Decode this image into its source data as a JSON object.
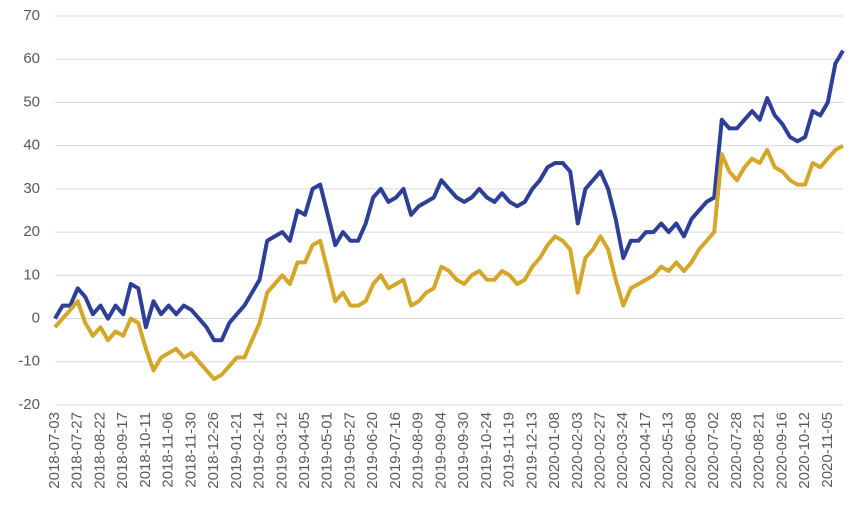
{
  "chart_data": {
    "type": "line",
    "categories": [
      "2018-07-03",
      null,
      null,
      "2018-07-27",
      null,
      null,
      "2018-08-22",
      null,
      null,
      "2018-09-17",
      null,
      null,
      "2018-10-11",
      null,
      null,
      "2018-11-06",
      null,
      null,
      "2018-11-30",
      null,
      null,
      "2018-12-26",
      null,
      null,
      "2019-01-21",
      null,
      null,
      "2019-02-14",
      null,
      null,
      "2019-03-12",
      null,
      null,
      "2019-04-05",
      null,
      null,
      "2019-05-01",
      null,
      null,
      "2019-05-27",
      null,
      null,
      "2019-06-20",
      null,
      null,
      "2019-07-16",
      null,
      null,
      "2019-08-09",
      null,
      null,
      "2019-09-04",
      null,
      null,
      "2019-09-30",
      null,
      null,
      "2019-10-24",
      null,
      null,
      "2019-11-19",
      null,
      null,
      "2019-12-13",
      null,
      null,
      "2020-01-08",
      null,
      null,
      "2020-02-03",
      null,
      null,
      "2020-02-27",
      null,
      null,
      "2020-03-24",
      null,
      null,
      "2020-04-17",
      null,
      null,
      "2020-05-13",
      null,
      null,
      "2020-06-08",
      null,
      null,
      "2020-07-02",
      null,
      null,
      "2020-07-28",
      null,
      null,
      "2020-08-21",
      null,
      null,
      "2020-09-16",
      null,
      null,
      "2020-10-12",
      null,
      null,
      "2020-11-05",
      null,
      null
    ],
    "series": [
      {
        "color": "#2e3f97",
        "values": [
          0,
          3,
          3,
          7,
          5,
          1,
          3,
          0,
          3,
          1,
          8,
          7,
          -2,
          4,
          1,
          3,
          1,
          3,
          2,
          0,
          -2,
          -5,
          -5,
          -1,
          1,
          3,
          6,
          9,
          18,
          19,
          20,
          18,
          25,
          24,
          30,
          31,
          24,
          17,
          20,
          18,
          18,
          22,
          28,
          30,
          27,
          28,
          30,
          24,
          26,
          27,
          28,
          32,
          30,
          28,
          27,
          28,
          30,
          28,
          27,
          29,
          27,
          26,
          27,
          30,
          32,
          35,
          36,
          36,
          34,
          22,
          30,
          32,
          34,
          30,
          23,
          14,
          18,
          18,
          20,
          20,
          22,
          20,
          22,
          19,
          23,
          25,
          27,
          28,
          46,
          44,
          44,
          46,
          48,
          46,
          51,
          47,
          45,
          42,
          41,
          42,
          48,
          47,
          50,
          59,
          62
        ]
      },
      {
        "color": "#d4a62a",
        "values": [
          -2,
          0,
          2,
          4,
          -1,
          -4,
          -2,
          -5,
          -3,
          -4,
          0,
          -1,
          -7,
          -12,
          -9,
          -8,
          -7,
          -9,
          -8,
          -10,
          -12,
          -14,
          -13,
          -11,
          -9,
          -9,
          -5,
          -1,
          6,
          8,
          10,
          8,
          13,
          13,
          17,
          18,
          11,
          4,
          6,
          3,
          3,
          4,
          8,
          10,
          7,
          8,
          9,
          3,
          4,
          6,
          7,
          12,
          11,
          9,
          8,
          10,
          11,
          9,
          9,
          11,
          10,
          8,
          9,
          12,
          14,
          17,
          19,
          18,
          16,
          6,
          14,
          16,
          19,
          16,
          9,
          3,
          7,
          8,
          9,
          10,
          12,
          11,
          13,
          11,
          13,
          16,
          18,
          20,
          38,
          34,
          32,
          35,
          37,
          36,
          39,
          35,
          34,
          32,
          31,
          31,
          36,
          35,
          37,
          39,
          40
        ]
      }
    ],
    "ylim": [
      -20,
      70
    ],
    "yticks": [
      -20,
      -10,
      0,
      10,
      20,
      30,
      40,
      50,
      60,
      70
    ],
    "grid": true
  }
}
